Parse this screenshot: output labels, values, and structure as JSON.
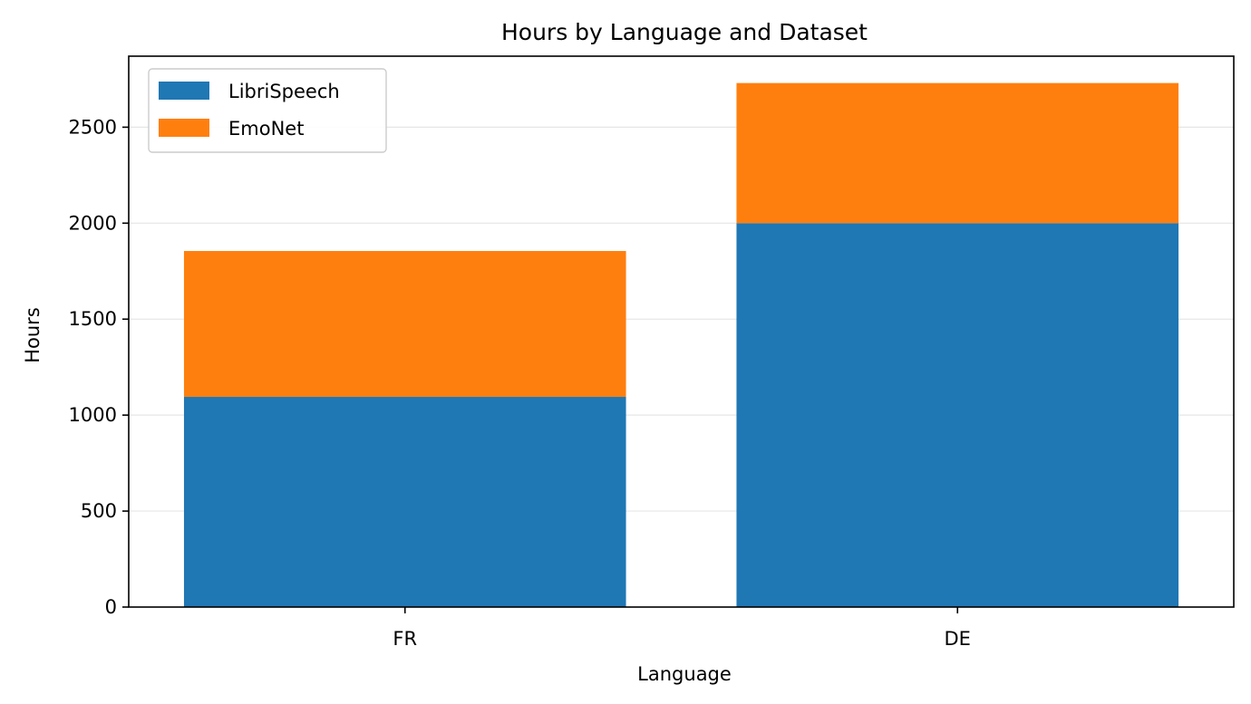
{
  "chart_data": {
    "type": "bar",
    "stacked": true,
    "title": "Hours by Language and Dataset",
    "xlabel": "Language",
    "ylabel": "Hours",
    "categories": [
      "FR",
      "DE"
    ],
    "series": [
      {
        "name": "LibriSpeech",
        "values": [
          1095,
          2000
        ],
        "color": "#1f77b4"
      },
      {
        "name": "EmoNet",
        "values": [
          760,
          730
        ],
        "color": "#ff7f0e"
      }
    ],
    "ylim": [
      0,
      2870
    ],
    "yticks": [
      0,
      500,
      1000,
      1500,
      2000,
      2500
    ],
    "grid": "y",
    "legend_position": "top-left"
  }
}
